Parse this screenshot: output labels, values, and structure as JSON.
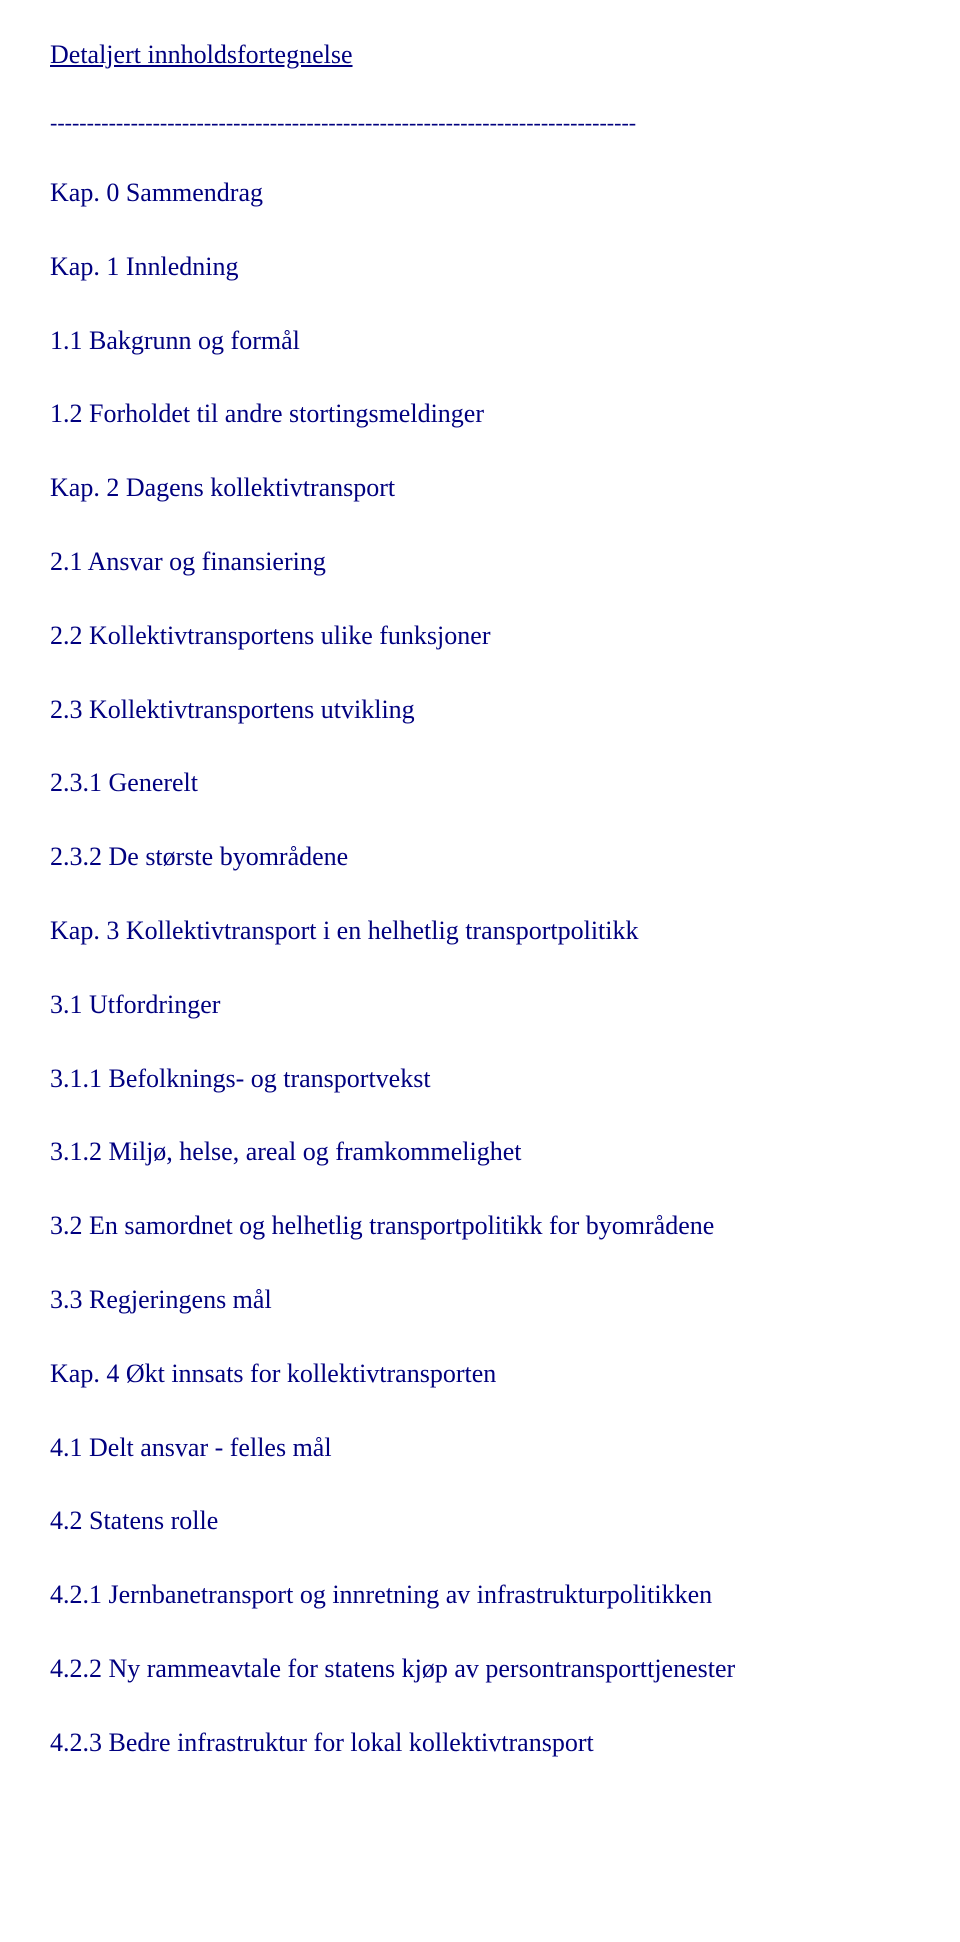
{
  "title": "Detaljert innholdsfortegnelse",
  "divider": "--------------------------------------------------------------------------------",
  "entries": [
    "Kap. 0  Sammendrag",
    "Kap. 1  Innledning",
    "1.1  Bakgrunn og formål",
    "1.2  Forholdet til andre stortingsmeldinger",
    "Kap. 2  Dagens kollektivtransport",
    "2.1  Ansvar og finansiering",
    "2.2  Kollektivtransportens ulike funksjoner",
    "2.3  Kollektivtransportens utvikling",
    "2.3.1  Generelt",
    "2.3.2  De største byområdene",
    "Kap. 3  Kollektivtransport i en helhetlig transportpolitikk",
    "3.1  Utfordringer",
    "3.1.1  Befolknings- og transportvekst",
    "3.1.2  Miljø, helse, areal og framkommelighet",
    "3.2  En samordnet og helhetlig transportpolitikk for byområdene",
    "3.3  Regjeringens mål",
    "Kap. 4  Økt innsats for kollektivtransporten",
    "4.1  Delt ansvar - felles mål",
    "4.2  Statens rolle",
    "4.2.1  Jernbanetransport og innretning av infrastrukturpolitikken",
    "4.2.2  Ny rammeavtale for statens kjøp av persontransporttjenester",
    "4.2.3  Bedre infrastruktur for lokal kollektivtransport"
  ],
  "text_color": "#00007f",
  "background_color": "#ffffff",
  "title_fontsize": 26,
  "entry_fontsize": 26,
  "font_family": "Times New Roman"
}
